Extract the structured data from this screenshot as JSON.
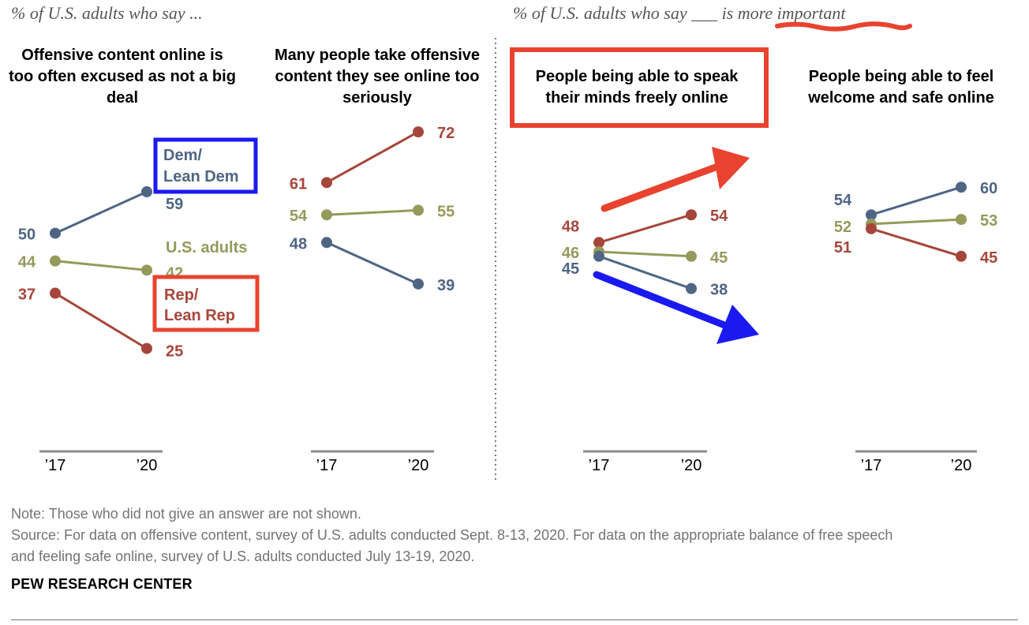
{
  "header_left": "% of U.S. adults who say ...",
  "header_right": "% of U.S. adults who say ___ is more important",
  "colors": {
    "dem": "#4e6584",
    "adults": "#949a5a",
    "rep": "#a6463a",
    "axis": "#8c8c8c",
    "annot_red": "#e8432f",
    "annot_blue": "#1a1af0",
    "note": "#737373"
  },
  "chart_data": {
    "type": "line",
    "x_labels": [
      "’17",
      "’20"
    ],
    "ylim": [
      20,
      80
    ],
    "panels": [
      {
        "title": "Offensive content online is too often excused as not a big deal",
        "series": [
          {
            "name": "Dem/ Lean Dem",
            "key": "dem",
            "values": [
              50,
              59
            ]
          },
          {
            "name": "U.S. adults",
            "key": "adults",
            "values": [
              44,
              42
            ]
          },
          {
            "name": "Rep/ Lean Rep",
            "key": "rep",
            "values": [
              37,
              25
            ]
          }
        ]
      },
      {
        "title": "Many people take offensive content they see online too seriously",
        "series": [
          {
            "name": "Rep/ Lean Rep",
            "key": "rep",
            "values": [
              61,
              72
            ]
          },
          {
            "name": "U.S. adults",
            "key": "adults",
            "values": [
              54,
              55
            ]
          },
          {
            "name": "Dem/ Lean Dem",
            "key": "dem",
            "values": [
              48,
              39
            ]
          }
        ]
      },
      {
        "title": "People being able to speak their minds freely online",
        "series": [
          {
            "name": "Rep/ Lean Rep",
            "key": "rep",
            "values": [
              48,
              54
            ]
          },
          {
            "name": "U.S. adults",
            "key": "adults",
            "values": [
              46,
              45
            ]
          },
          {
            "name": "Dem/ Lean Dem",
            "key": "dem",
            "values": [
              45,
              38
            ]
          }
        ]
      },
      {
        "title": "People being able to feel welcome and safe online",
        "series": [
          {
            "name": "Dem/ Lean Dem",
            "key": "dem",
            "values": [
              54,
              60
            ]
          },
          {
            "name": "U.S. adults",
            "key": "adults",
            "values": [
              52,
              53
            ]
          },
          {
            "name": "Rep/ Lean Rep",
            "key": "rep",
            "values": [
              51,
              45
            ]
          }
        ]
      }
    ],
    "legend": {
      "dem": [
        "Dem/",
        "Lean Dem"
      ],
      "adults": "U.S. adults",
      "rep": [
        "Rep/",
        "Lean Rep"
      ]
    }
  },
  "note": "Note: Those who did not give an answer are not shown.",
  "source_line1": "Source: For data on offensive content, survey of U.S. adults conducted Sept. 8-13, 2020. For data on the appropriate balance of free speech",
  "source_line2": "and feeling safe online, survey of U.S. adults conducted July 13-19, 2020.",
  "brand": "PEW RESEARCH CENTER"
}
